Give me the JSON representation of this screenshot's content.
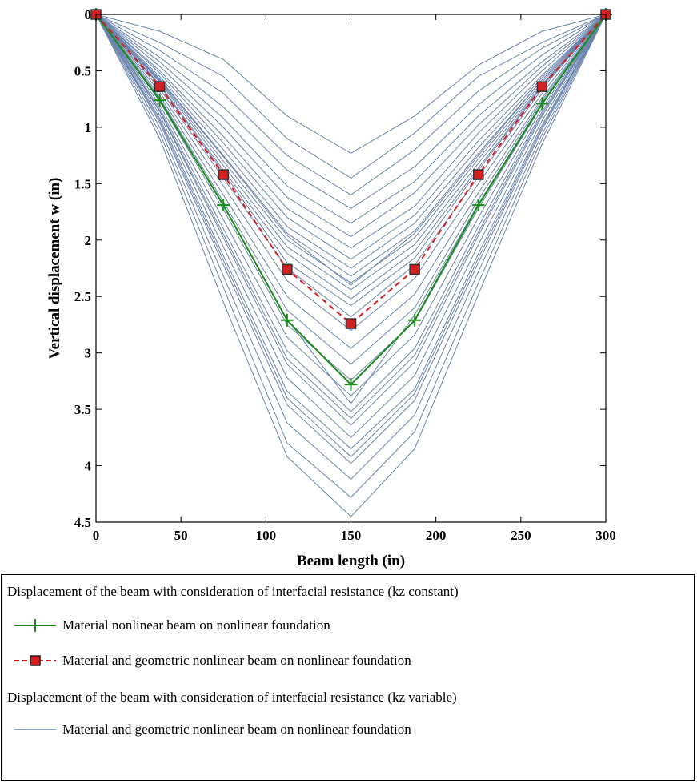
{
  "chart_data": {
    "type": "line",
    "title": "",
    "xlabel": "Beam length  (in)",
    "ylabel": "Vertical displacement w (in)",
    "xlim": [
      0,
      300
    ],
    "ylim": [
      0,
      4.5
    ],
    "y_inverted": true,
    "grid": false,
    "xticks": [
      "0",
      "50",
      "100",
      "150",
      "200",
      "250",
      "300"
    ],
    "yticks": [
      "0",
      "0.5",
      "1",
      "1.5",
      "2",
      "2.5",
      "3",
      "3.5",
      "4",
      "4.5"
    ],
    "x": [
      0,
      37.5,
      75,
      112.5,
      150,
      187.5,
      225,
      262.5,
      300
    ],
    "series": [
      {
        "name": "Material nonlinear beam on nonlinear foundation",
        "color": "#1a8c1a",
        "marker": "plus",
        "values": [
          0,
          0.76,
          1.69,
          2.71,
          3.28,
          2.71,
          1.69,
          0.79,
          0
        ]
      },
      {
        "name": "Material and geometric nonlinear beam on nonlinear foundation",
        "color": "#d42020",
        "marker": "square",
        "dashed": true,
        "values": [
          0,
          0.64,
          1.42,
          2.26,
          2.74,
          2.26,
          1.42,
          0.64,
          0
        ]
      }
    ],
    "variable_series_color": "#6b84ad",
    "variable_series": [
      [
        0,
        0.15,
        0.4,
        0.9,
        1.23,
        0.9,
        0.45,
        0.15,
        0
      ],
      [
        0,
        0.25,
        0.55,
        1.1,
        1.45,
        1.05,
        0.55,
        0.25,
        0
      ],
      [
        0,
        0.32,
        0.7,
        1.25,
        1.6,
        1.2,
        0.68,
        0.3,
        0
      ],
      [
        0,
        0.38,
        0.82,
        1.38,
        1.72,
        1.35,
        0.8,
        0.36,
        0
      ],
      [
        0,
        0.42,
        0.92,
        1.52,
        1.85,
        1.48,
        0.9,
        0.42,
        0
      ],
      [
        0,
        0.46,
        1.0,
        1.62,
        1.97,
        1.58,
        0.98,
        0.46,
        0
      ],
      [
        0,
        0.5,
        1.08,
        1.72,
        2.07,
        1.7,
        1.05,
        0.5,
        0
      ],
      [
        0,
        0.52,
        1.14,
        1.8,
        2.17,
        1.78,
        1.12,
        0.54,
        0
      ],
      [
        0,
        0.55,
        1.2,
        1.88,
        2.25,
        1.85,
        1.18,
        0.56,
        0
      ],
      [
        0,
        0.57,
        1.25,
        1.94,
        2.32,
        1.92,
        1.23,
        0.58,
        0
      ],
      [
        0,
        0.59,
        1.3,
        2.0,
        2.38,
        1.98,
        1.28,
        0.6,
        0
      ],
      [
        0,
        0.6,
        1.34,
        2.06,
        2.44,
        2.04,
        1.32,
        0.62,
        0
      ],
      [
        0,
        0.62,
        1.38,
        2.12,
        2.52,
        2.1,
        1.36,
        0.63,
        0
      ],
      [
        0,
        0.66,
        1.45,
        2.25,
        2.68,
        2.22,
        1.44,
        0.66,
        0
      ],
      [
        0,
        0.69,
        1.52,
        2.36,
        2.8,
        2.34,
        1.5,
        0.7,
        0
      ],
      [
        0,
        0.72,
        1.6,
        2.5,
        2.96,
        2.48,
        1.58,
        0.74,
        0
      ],
      [
        0,
        0.74,
        1.66,
        2.62,
        3.1,
        2.6,
        1.64,
        0.76,
        0
      ],
      [
        0,
        0.77,
        1.73,
        2.75,
        3.24,
        2.72,
        1.72,
        0.8,
        0
      ],
      [
        0,
        0.8,
        1.82,
        2.86,
        3.38,
        2.84,
        1.8,
        0.83,
        0
      ],
      [
        0,
        0.83,
        1.9,
        2.98,
        3.52,
        2.96,
        1.88,
        0.86,
        0
      ],
      [
        0,
        0.86,
        1.98,
        3.1,
        3.64,
        3.08,
        1.96,
        0.9,
        0
      ],
      [
        0,
        0.89,
        2.06,
        3.22,
        3.75,
        3.2,
        2.04,
        0.94,
        0
      ],
      [
        0,
        0.92,
        2.14,
        3.34,
        3.85,
        3.32,
        2.12,
        0.98,
        0
      ],
      [
        0,
        0.96,
        2.22,
        3.46,
        3.98,
        3.42,
        2.2,
        1.02,
        0
      ],
      [
        0,
        1.0,
        2.32,
        3.62,
        4.12,
        3.55,
        2.28,
        1.06,
        0
      ],
      [
        0,
        1.05,
        2.42,
        3.8,
        4.28,
        3.7,
        2.38,
        1.1,
        0
      ],
      [
        0,
        1.1,
        2.55,
        3.92,
        4.45,
        3.85,
        2.48,
        1.15,
        0
      ],
      [
        0,
        0.58,
        1.26,
        1.96,
        2.4,
        1.94,
        1.25,
        0.58,
        0
      ],
      [
        0,
        0.63,
        1.4,
        2.2,
        2.58,
        2.16,
        1.38,
        0.64,
        0
      ],
      [
        0,
        0.75,
        1.7,
        2.7,
        3.45,
        2.66,
        1.68,
        0.78,
        0
      ],
      [
        0,
        0.85,
        1.95,
        3.05,
        3.58,
        3.02,
        1.93,
        0.88,
        0
      ],
      [
        0,
        0.94,
        2.18,
        3.4,
        3.92,
        3.36,
        2.16,
        1.0,
        0
      ]
    ],
    "legend": {
      "placement": "below",
      "group1_title": "Displacement of the beam with consideration of interfacial resistance (kz constant)",
      "group2_title": "Displacement of the beam with consideration of interfacial resistance (kz variable)",
      "variable_label": "Material and geometric nonlinear beam on nonlinear foundation"
    }
  }
}
